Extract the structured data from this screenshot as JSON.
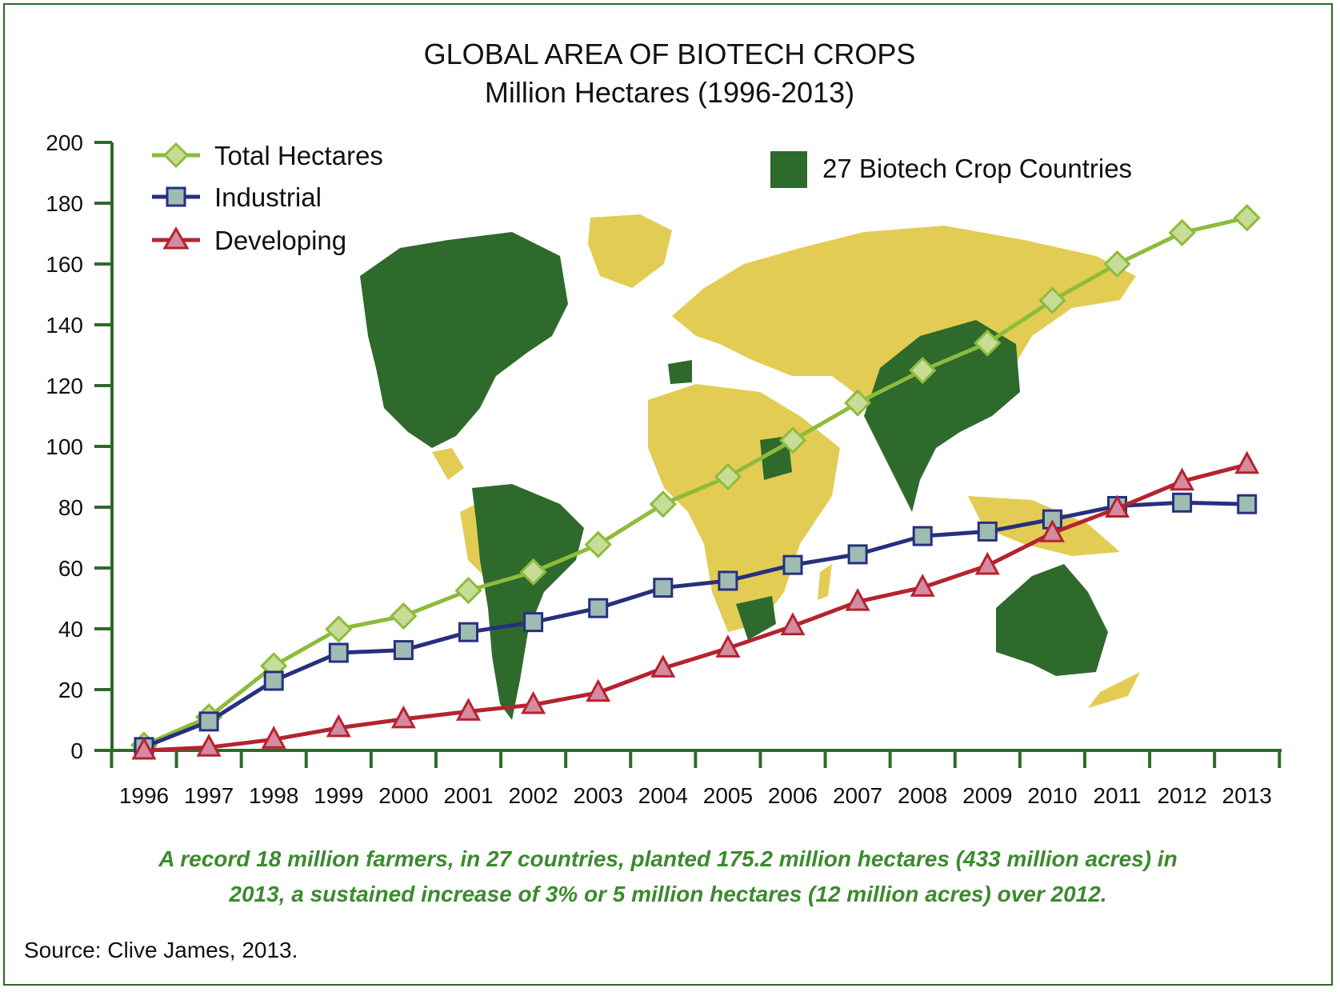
{
  "chart_data": {
    "type": "line",
    "title": "GLOBAL AREA OF BIOTECH CROPS",
    "subtitle": "Million Hectares (1996-2013)",
    "xlabel": "",
    "ylabel": "",
    "x": [
      "1996",
      "1997",
      "1998",
      "1999",
      "2000",
      "2001",
      "2002",
      "2003",
      "2004",
      "2005",
      "2006",
      "2007",
      "2008",
      "2009",
      "2010",
      "2011",
      "2012",
      "2013"
    ],
    "ylim": [
      0,
      200
    ],
    "yticks": [
      0,
      20,
      40,
      60,
      80,
      100,
      120,
      140,
      160,
      180,
      200
    ],
    "grid": false,
    "legend_position": "top-left",
    "series": [
      {
        "name": "Total Hectares",
        "color": "#8dbb3c",
        "marker": "diamond",
        "values": [
          1.7,
          11,
          27.8,
          39.9,
          44.2,
          52.6,
          58.7,
          67.7,
          81.0,
          90.0,
          102.0,
          114.3,
          125.0,
          134.0,
          148.0,
          160.0,
          170.3,
          175.2
        ]
      },
      {
        "name": "Industrial",
        "color": "#27307f",
        "marker": "square",
        "values": [
          1.1,
          9.5,
          22.9,
          32.1,
          33.0,
          38.9,
          42.2,
          46.8,
          53.5,
          55.8,
          61.0,
          64.5,
          70.5,
          72.0,
          76.0,
          80.4,
          81.5,
          81.0
        ]
      },
      {
        "name": "Developing",
        "color": "#b5232e",
        "marker": "triangle",
        "values": [
          0.0,
          1.0,
          3.6,
          7.4,
          10.3,
          12.8,
          15.0,
          19.0,
          27.0,
          33.6,
          40.9,
          48.9,
          53.6,
          60.8,
          71.5,
          79.6,
          88.5,
          94.0
        ]
      }
    ],
    "background_map_legend": {
      "label": "27 Biotech Crop Countries",
      "color": "#2e6a2b"
    }
  },
  "map_colors": {
    "biotech_country": "#2e6a2b",
    "other_country": "#e3cc53"
  },
  "caption": {
    "line1": "A record 18 million farmers, in 27 countries, planted 175.2 million hectares (433 million acres) in",
    "line2": "2013, a sustained increase of 3% or 5 million hectares (12 million acres) over 2012."
  },
  "source": "Source: Clive James, 2013."
}
